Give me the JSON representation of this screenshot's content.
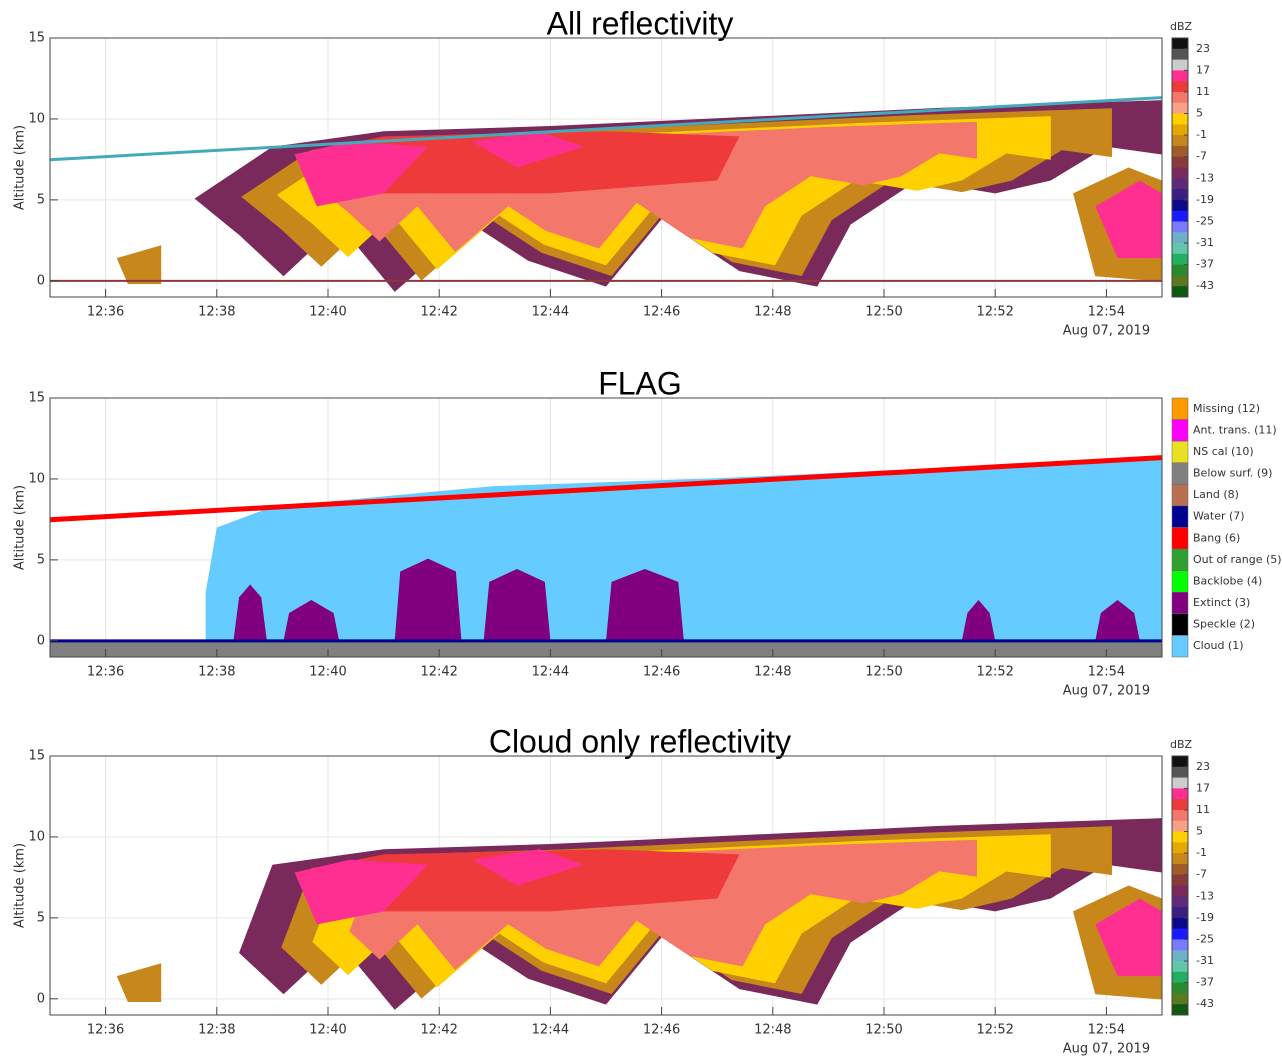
{
  "chart_data": [
    {
      "type": "curtain",
      "title": "All reflectivity",
      "y_label": "Altitude (km)",
      "ylim": [
        -1,
        15
      ],
      "yticks": [
        0,
        5,
        10,
        15
      ],
      "xlim": [
        755,
        775
      ],
      "xticks": [
        {
          "value": 756,
          "label": "12:36"
        },
        {
          "value": 758,
          "label": "12:38"
        },
        {
          "value": 760,
          "label": "12:40"
        },
        {
          "value": 762,
          "label": "12:42"
        },
        {
          "value": 764,
          "label": "12:44"
        },
        {
          "value": 766,
          "label": "12:46"
        },
        {
          "value": 768,
          "label": "12:48"
        },
        {
          "value": 770,
          "label": "12:50"
        },
        {
          "value": 772,
          "label": "12:52"
        },
        {
          "value": 774,
          "label": "12:54"
        }
      ],
      "x_date": "Aug 07, 2019",
      "grid": true,
      "colorbar": {
        "label": "dBZ",
        "clim": [
          -46,
          26
        ],
        "ticks": [
          23,
          17,
          11,
          5,
          -1,
          -7,
          -13,
          -19,
          -25,
          -31,
          -37,
          -43
        ],
        "colors": [
          "#111111",
          "#555555",
          "#cccccc",
          "#ff2f92",
          "#ee3a3a",
          "#f4776b",
          "#f9a088",
          "#ffd000",
          "#e5a800",
          "#c7871a",
          "#a35a2a",
          "#8a3a3a",
          "#7a2a5a",
          "#5f2a7a",
          "#3a1f80",
          "#0a0a8a",
          "#1a1aff",
          "#7a7aff",
          "#6fb0c8",
          "#60c8a8",
          "#20b060",
          "#2a8a30",
          "#5a7a20",
          "#105a10"
        ]
      }
    },
    {
      "type": "flag",
      "title": "FLAG",
      "y_label": "Altitude (km)",
      "ylim": [
        -1,
        15
      ],
      "yticks": [
        0,
        5,
        10,
        15
      ],
      "xlim": [
        755,
        775
      ],
      "xticks": [
        {
          "value": 756,
          "label": "12:36"
        },
        {
          "value": 758,
          "label": "12:38"
        },
        {
          "value": 760,
          "label": "12:40"
        },
        {
          "value": 762,
          "label": "12:42"
        },
        {
          "value": 764,
          "label": "12:44"
        },
        {
          "value": 766,
          "label": "12:46"
        },
        {
          "value": 768,
          "label": "12:48"
        },
        {
          "value": 770,
          "label": "12:50"
        },
        {
          "value": 772,
          "label": "12:52"
        },
        {
          "value": 774,
          "label": "12:54"
        }
      ],
      "x_date": "Aug 07, 2019",
      "grid": true,
      "legend": [
        {
          "name": "Missing (12)",
          "color": "#ff9900"
        },
        {
          "name": "Ant. trans. (11)",
          "color": "#ff00ff"
        },
        {
          "name": "NS cal (10)",
          "color": "#e8e020"
        },
        {
          "name": "Below surf. (9)",
          "color": "#808080"
        },
        {
          "name": "Land (8)",
          "color": "#b87050"
        },
        {
          "name": "Water (7)",
          "color": "#000090"
        },
        {
          "name": "Bang (6)",
          "color": "#ff0000"
        },
        {
          "name": "Out of range (5)",
          "color": "#30a030"
        },
        {
          "name": "Backlobe (4)",
          "color": "#00ff00"
        },
        {
          "name": "Extinct (3)",
          "color": "#800080"
        },
        {
          "name": "Speckle (2)",
          "color": "#000000"
        },
        {
          "name": "Cloud (1)",
          "color": "#66ccff"
        }
      ]
    },
    {
      "type": "curtain",
      "title": "Cloud only reflectivity",
      "y_label": "Altitude (km)",
      "ylim": [
        -1,
        15
      ],
      "yticks": [
        0,
        5,
        10,
        15
      ],
      "xlim": [
        755,
        775
      ],
      "xticks": [
        {
          "value": 756,
          "label": "12:36"
        },
        {
          "value": 758,
          "label": "12:38"
        },
        {
          "value": 760,
          "label": "12:40"
        },
        {
          "value": 762,
          "label": "12:42"
        },
        {
          "value": 764,
          "label": "12:44"
        },
        {
          "value": 766,
          "label": "12:46"
        },
        {
          "value": 768,
          "label": "12:48"
        },
        {
          "value": 770,
          "label": "12:50"
        },
        {
          "value": 772,
          "label": "12:52"
        },
        {
          "value": 774,
          "label": "12:54"
        }
      ],
      "x_date": "Aug 07, 2019",
      "grid": true,
      "colorbar": {
        "label": "dBZ",
        "clim": [
          -46,
          26
        ],
        "ticks": [
          23,
          17,
          11,
          5,
          -1,
          -7,
          -13,
          -19,
          -25,
          -31,
          -37,
          -43
        ],
        "colors": [
          "#111111",
          "#555555",
          "#cccccc",
          "#ff2f92",
          "#ee3a3a",
          "#f4776b",
          "#f9a088",
          "#ffd000",
          "#e5a800",
          "#c7871a",
          "#a35a2a",
          "#8a3a3a",
          "#7a2a5a",
          "#5f2a7a",
          "#3a1f80",
          "#0a0a8a",
          "#1a1aff",
          "#7a7aff",
          "#6fb0c8",
          "#60c8a8",
          "#20b060",
          "#2a8a30",
          "#5a7a20",
          "#105a10"
        ]
      }
    }
  ]
}
